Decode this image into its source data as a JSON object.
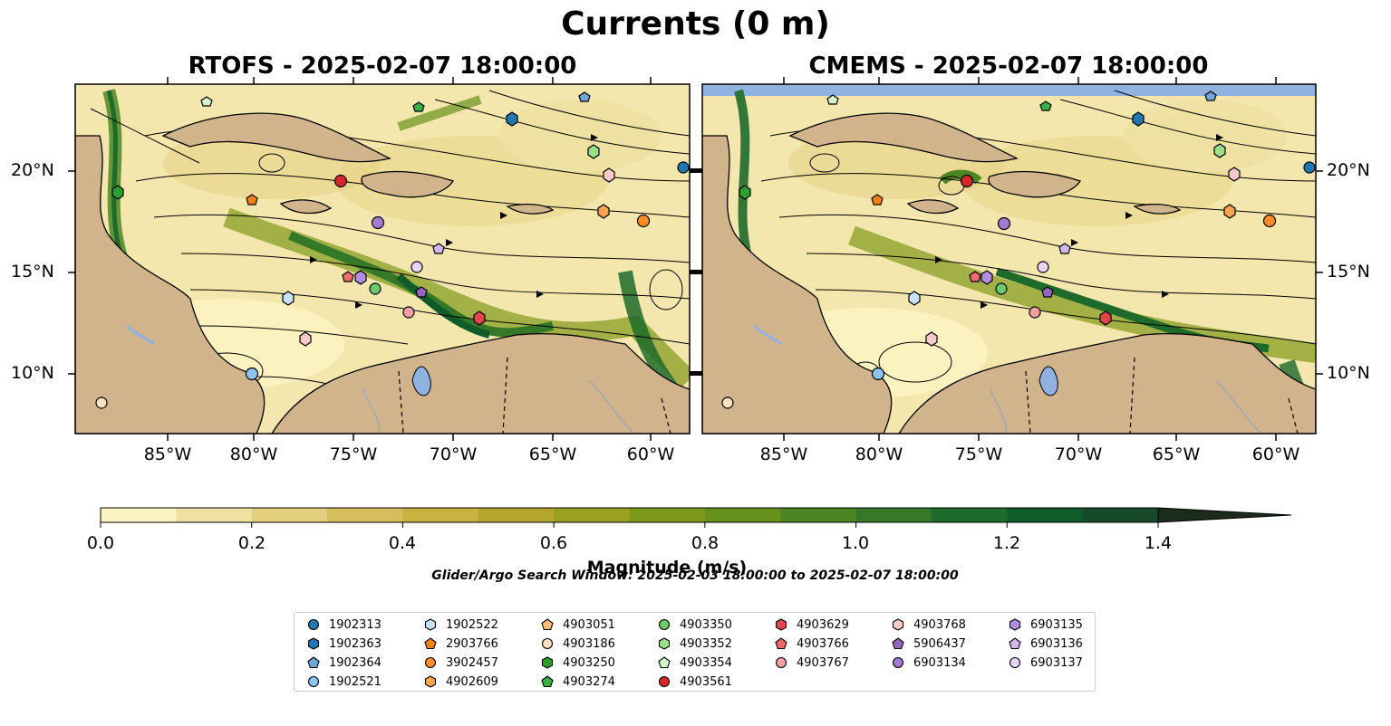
{
  "figure": {
    "title": "Currents (0 m)",
    "search_window": "Glider/Argo Search Window: 2025-02-03 18:00:00 to 2025-02-07 18:00:00"
  },
  "panels": [
    {
      "title": "RTOFS - 2025-02-07 18:00:00"
    },
    {
      "title": "CMEMS - 2025-02-07 18:00:00"
    }
  ],
  "map": {
    "lon_ticks": [
      "85°W",
      "80°W",
      "75°W",
      "70°W",
      "65°W",
      "60°W"
    ],
    "lat_ticks": [
      "20°N",
      "15°N",
      "10°N"
    ],
    "land_color": "#d2b48c",
    "water_color": "#8fb2e0"
  },
  "colorbar": {
    "label": "Magnitude (m/s)",
    "ticks": [
      "0.0",
      "0.2",
      "0.4",
      "0.6",
      "0.8",
      "1.0",
      "1.2",
      "1.4"
    ],
    "range": [
      0.0,
      1.5
    ],
    "extend": "max",
    "colors": [
      "#fbf3c2",
      "#efe1a1",
      "#e4cf7e",
      "#d7be5c",
      "#c8b341",
      "#b3a52d",
      "#9aa122",
      "#7f991a",
      "#65911d",
      "#4c8622",
      "#347828",
      "#1d6a2a",
      "#0f5b2a",
      "#174a2b",
      "#1c3b24",
      "#1b2c1c"
    ]
  },
  "legend": {
    "columns": [
      [
        {
          "label": "1902313",
          "marker": "circle",
          "color": "#1f77b4"
        },
        {
          "label": "1902363",
          "marker": "hexagon",
          "color": "#1f77b4"
        },
        {
          "label": "1902364",
          "marker": "pentagon",
          "color": "#6fa7d9"
        },
        {
          "label": "1902521",
          "marker": "circle",
          "color": "#8fc4ee"
        }
      ],
      [
        {
          "label": "1902522",
          "marker": "hexagon",
          "color": "#c7e1f5"
        },
        {
          "label": "2903766",
          "marker": "pentagon",
          "color": "#ff7f0e"
        },
        {
          "label": "3902457",
          "marker": "circle",
          "color": "#ff8c2a"
        },
        {
          "label": "4902609",
          "marker": "hexagon",
          "color": "#ffa54f"
        }
      ],
      [
        {
          "label": "4903051",
          "marker": "pentagon",
          "color": "#ffbb78"
        },
        {
          "label": "4903186",
          "marker": "circle",
          "color": "#ffe0c0"
        },
        {
          "label": "4903250",
          "marker": "hexagon",
          "color": "#2ca02c"
        },
        {
          "label": "4903274",
          "marker": "pentagon",
          "color": "#3cb043"
        }
      ],
      [
        {
          "label": "4903350",
          "marker": "circle",
          "color": "#6cc96c"
        },
        {
          "label": "4903352",
          "marker": "hexagon",
          "color": "#98df8a"
        },
        {
          "label": "4903354",
          "marker": "pentagon",
          "color": "#d5f7c9"
        },
        {
          "label": "4903561",
          "marker": "circle",
          "color": "#d62728"
        }
      ],
      [
        {
          "label": "4903629",
          "marker": "hexagon",
          "color": "#e0474c"
        },
        {
          "label": "4903766",
          "marker": "pentagon",
          "color": "#f06c6c"
        },
        {
          "label": "4903767",
          "marker": "circle",
          "color": "#f4a0a3"
        }
      ],
      [
        {
          "label": "4903768",
          "marker": "hexagon",
          "color": "#ffc9c9"
        },
        {
          "label": "5906437",
          "marker": "pentagon",
          "color": "#9467bd"
        },
        {
          "label": "6903134",
          "marker": "circle",
          "color": "#a07bd0"
        }
      ],
      [
        {
          "label": "6903135",
          "marker": "hexagon",
          "color": "#b48ee0"
        },
        {
          "label": "6903136",
          "marker": "pentagon",
          "color": "#d3b8f0"
        },
        {
          "label": "6903137",
          "marker": "circle",
          "color": "#e8d5f9"
        }
      ]
    ]
  }
}
